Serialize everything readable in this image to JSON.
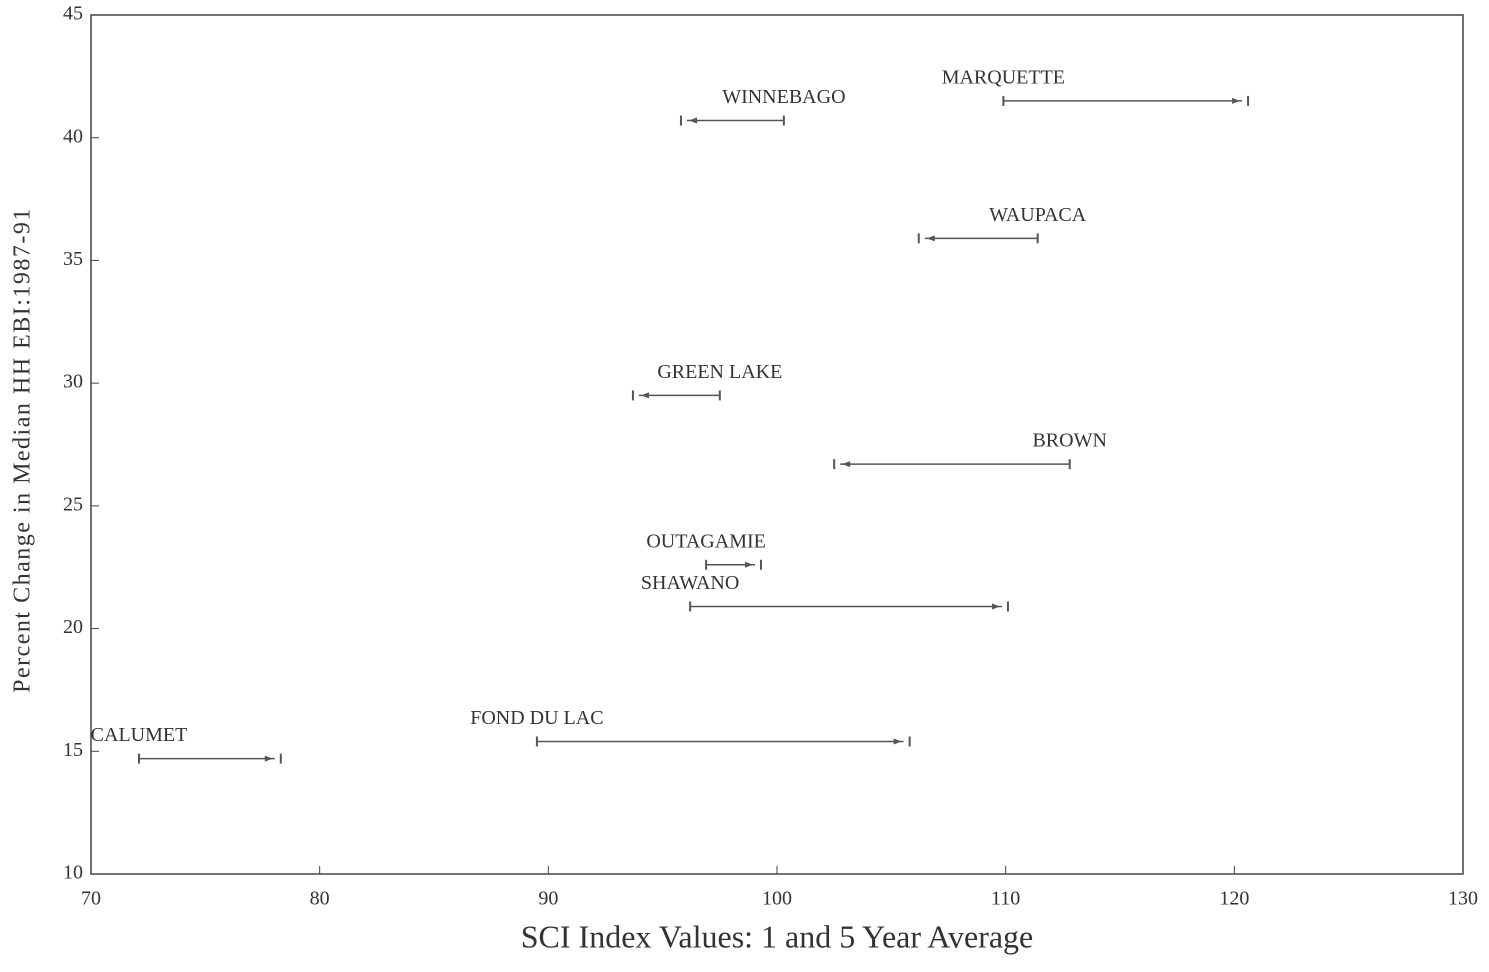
{
  "chart_data": {
    "type": "arrow-range",
    "x_label": "SCI Index Values: 1 and 5 Year Average",
    "y_label": "Percent Change in Median HH EBI:1987-91",
    "xlim": [
      70,
      130
    ],
    "xticks": [
      70,
      80,
      90,
      100,
      110,
      120,
      130
    ],
    "ylim": [
      10,
      45
    ],
    "yticks": [
      10,
      15,
      20,
      25,
      30,
      35,
      40,
      45
    ],
    "color": "#555555",
    "points": [
      {
        "label": "WINNEBAGO",
        "x": [
          100.3,
          95.8
        ],
        "y": 40.7
      },
      {
        "label": "MARQUETTE",
        "x": [
          109.9,
          120.6
        ],
        "y": 41.5
      },
      {
        "label": "WAUPACA",
        "x": [
          111.4,
          106.2
        ],
        "y": 35.9
      },
      {
        "label": "GREEN LAKE",
        "x": [
          97.5,
          93.7
        ],
        "y": 29.5
      },
      {
        "label": "BROWN",
        "x": [
          112.8,
          102.5
        ],
        "y": 26.7
      },
      {
        "label": "OUTAGAMIE",
        "x": [
          96.9,
          99.3
        ],
        "y": 22.6
      },
      {
        "label": "SHAWANO",
        "x": [
          96.2,
          110.1
        ],
        "y": 20.9
      },
      {
        "label": "FOND DU LAC",
        "x": [
          89.5,
          105.8
        ],
        "y": 15.4
      },
      {
        "label": "CALUMET",
        "x": [
          72.1,
          78.3
        ],
        "y": 14.7
      }
    ]
  }
}
